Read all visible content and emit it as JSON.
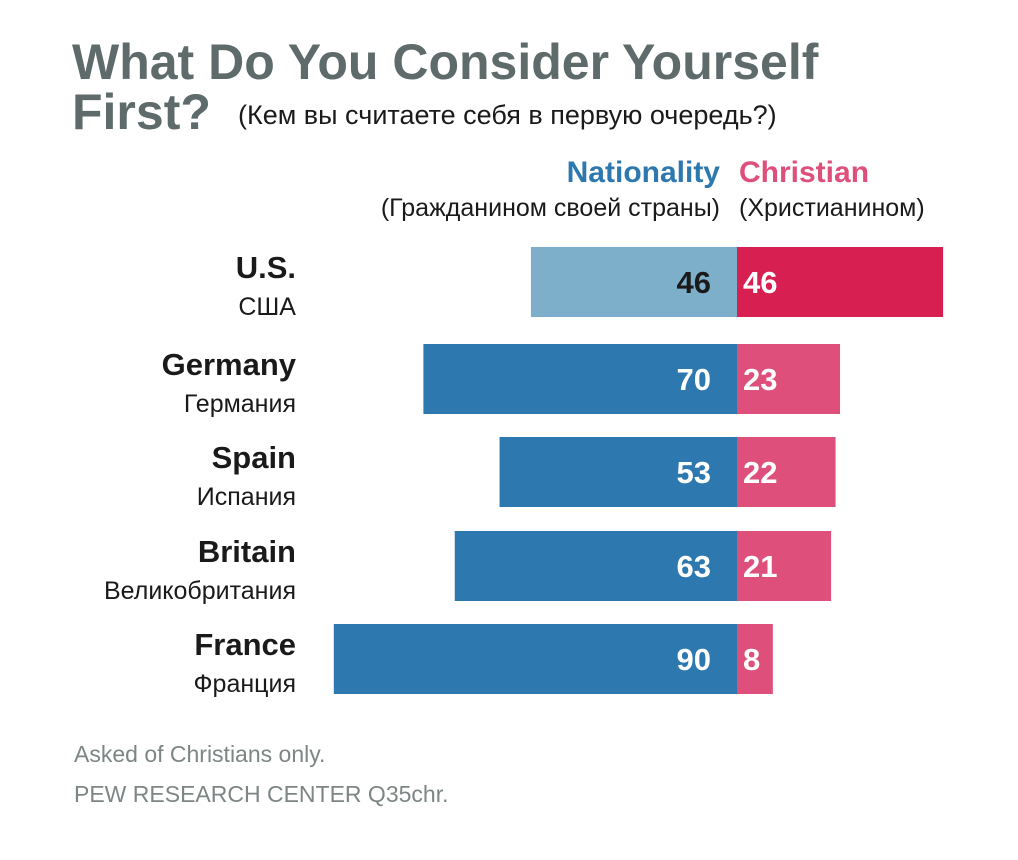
{
  "title": {
    "line1": "What Do You Consider Yourself",
    "line2": "First?",
    "subtitle_ru": "(Кем вы считаете себя в первую очередь?)"
  },
  "legend": {
    "nationality": {
      "label": "Nationality",
      "label_ru": "(Гражданином своей страны)",
      "color": "#2e78b0"
    },
    "christian": {
      "label": "Christian",
      "label_ru": "(Христианином)",
      "color": "#de4f7c"
    }
  },
  "colors": {
    "us_nationality": "#7eafca",
    "us_christian": "#d81f52",
    "title": "#5f6b6b",
    "footer": "#7d8585"
  },
  "chart_data": {
    "type": "bar",
    "orientation": "horizontal-diverging",
    "title": "What Do You Consider Yourself First?",
    "subtitle": "(Кем вы считаете себя в первую очередь?)",
    "categories": [
      "U.S.",
      "Germany",
      "Spain",
      "Britain",
      "France"
    ],
    "categories_ru": [
      "США",
      "Германия",
      "Испания",
      "Великобритания",
      "Франция"
    ],
    "series": [
      {
        "name": "Nationality",
        "values": [
          46,
          70,
          53,
          63,
          90
        ]
      },
      {
        "name": "Christian",
        "values": [
          46,
          23,
          22,
          21,
          8
        ]
      }
    ],
    "units": "percent",
    "xlim": [
      0,
      100
    ]
  },
  "footnote": "Asked of Christians only.",
  "source": "PEW RESEARCH CENTER Q35chr."
}
